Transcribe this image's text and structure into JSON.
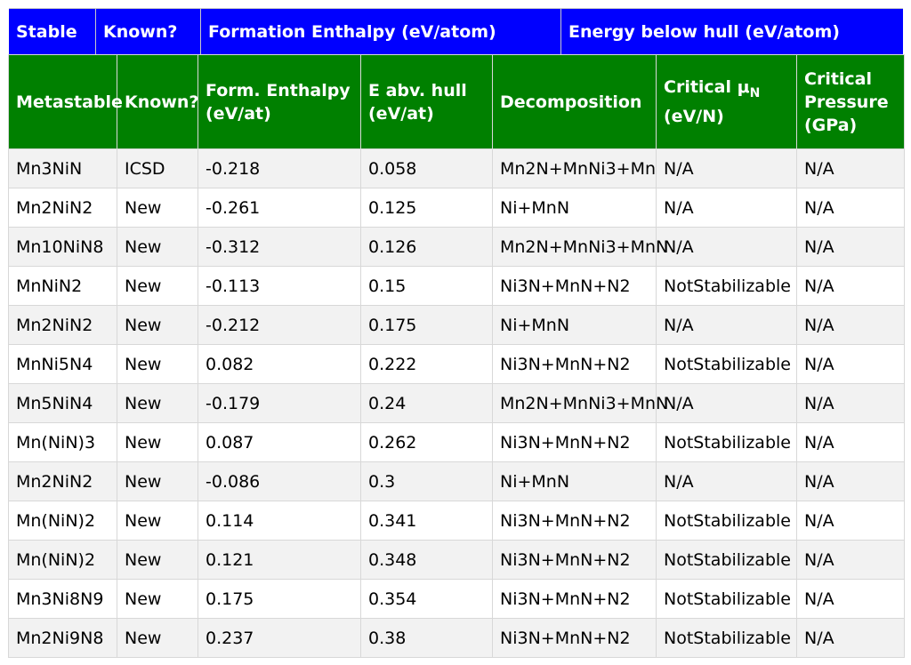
{
  "stable_header": [
    "Stable",
    "Known?",
    "Formation Enthalpy (eV/atom)",
    "Energy below hull (eV/atom)"
  ],
  "meta_header": {
    "metastable": "Metastable",
    "known": "Known?",
    "form_enthalpy_line1": "Form. Enthalpy",
    "form_enthalpy_line2": "(eV/at)",
    "e_abv_hull_line1": "E abv. hull",
    "e_abv_hull_line2": "(eV/at)",
    "decomposition": "Decomposition",
    "critical_mu_main": "Critical μ",
    "critical_mu_sub": "N",
    "critical_mu_unit": "(eV/N)",
    "critical_pressure_line1": "Critical",
    "critical_pressure_line2": "Pressure",
    "critical_pressure_line3": "(GPa)"
  },
  "rows": [
    {
      "formula": "Mn3NiN",
      "known": "ICSD",
      "enthalpy": "-0.218",
      "ehull": "0.058",
      "decomp": "Mn2N+MnNi3+Mn",
      "mu": "N/A",
      "pressure": "N/A"
    },
    {
      "formula": "Mn2NiN2",
      "known": "New",
      "enthalpy": "-0.261",
      "ehull": "0.125",
      "decomp": "Ni+MnN",
      "mu": "N/A",
      "pressure": "N/A"
    },
    {
      "formula": "Mn10NiN8",
      "known": "New",
      "enthalpy": "-0.312",
      "ehull": "0.126",
      "decomp": "Mn2N+MnNi3+MnN",
      "mu": "N/A",
      "pressure": "N/A"
    },
    {
      "formula": "MnNiN2",
      "known": "New",
      "enthalpy": "-0.113",
      "ehull": "0.15",
      "decomp": "Ni3N+MnN+N2",
      "mu": "NotStabilizable",
      "pressure": "N/A"
    },
    {
      "formula": "Mn2NiN2",
      "known": "New",
      "enthalpy": "-0.212",
      "ehull": "0.175",
      "decomp": "Ni+MnN",
      "mu": "N/A",
      "pressure": "N/A"
    },
    {
      "formula": "MnNi5N4",
      "known": "New",
      "enthalpy": "0.082",
      "ehull": "0.222",
      "decomp": "Ni3N+MnN+N2",
      "mu": "NotStabilizable",
      "pressure": "N/A"
    },
    {
      "formula": "Mn5NiN4",
      "known": "New",
      "enthalpy": "-0.179",
      "ehull": "0.24",
      "decomp": "Mn2N+MnNi3+MnN",
      "mu": "N/A",
      "pressure": "N/A"
    },
    {
      "formula": "Mn(NiN)3",
      "known": "New",
      "enthalpy": "0.087",
      "ehull": "0.262",
      "decomp": "Ni3N+MnN+N2",
      "mu": "NotStabilizable",
      "pressure": "N/A"
    },
    {
      "formula": "Mn2NiN2",
      "known": "New",
      "enthalpy": "-0.086",
      "ehull": "0.3",
      "decomp": "Ni+MnN",
      "mu": "N/A",
      "pressure": "N/A"
    },
    {
      "formula": "Mn(NiN)2",
      "known": "New",
      "enthalpy": "0.114",
      "ehull": "0.341",
      "decomp": "Ni3N+MnN+N2",
      "mu": "NotStabilizable",
      "pressure": "N/A"
    },
    {
      "formula": "Mn(NiN)2",
      "known": "New",
      "enthalpy": "0.121",
      "ehull": "0.348",
      "decomp": "Ni3N+MnN+N2",
      "mu": "NotStabilizable",
      "pressure": "N/A"
    },
    {
      "formula": "Mn3Ni8N9",
      "known": "New",
      "enthalpy": "0.175",
      "ehull": "0.354",
      "decomp": "Ni3N+MnN+N2",
      "mu": "NotStabilizable",
      "pressure": "N/A"
    },
    {
      "formula": "Mn2Ni9N8",
      "known": "New",
      "enthalpy": "0.237",
      "ehull": "0.38",
      "decomp": "Ni3N+MnN+N2",
      "mu": "NotStabilizable",
      "pressure": "N/A"
    }
  ],
  "colors": {
    "stable_header_bg": "#0000ff",
    "meta_header_bg": "#008000",
    "new_label": "#ff00ff",
    "positive_enthalpy": "#ee0000"
  }
}
